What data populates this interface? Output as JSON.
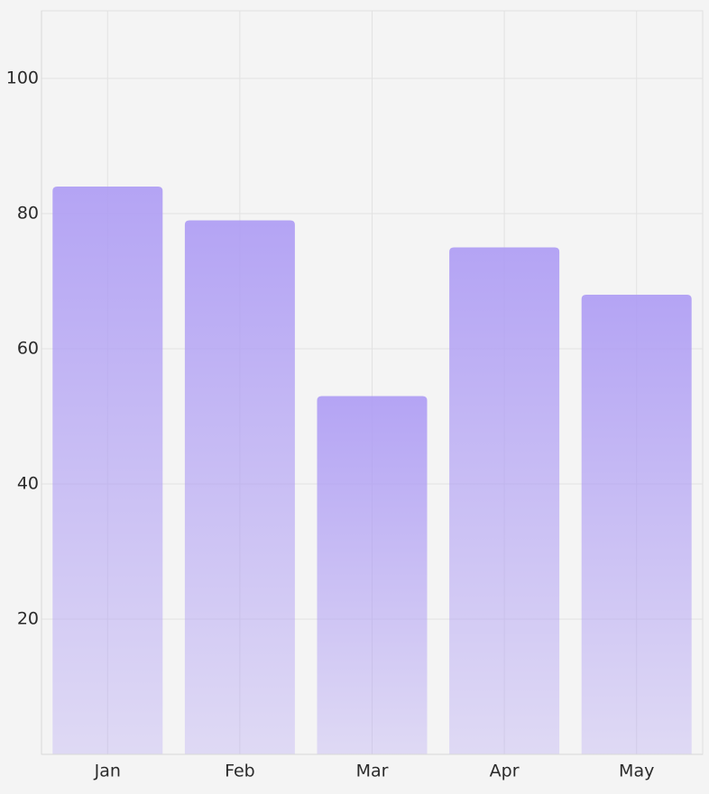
{
  "chart_data": {
    "type": "bar",
    "categories": [
      "Jan",
      "Feb",
      "Mar",
      "Apr",
      "May"
    ],
    "values": [
      84,
      79,
      53,
      75,
      68
    ],
    "color": "#ad9bf4",
    "ylim": [
      0,
      110
    ],
    "yticks": [
      20,
      40,
      60,
      80,
      100
    ],
    "grid": true
  }
}
